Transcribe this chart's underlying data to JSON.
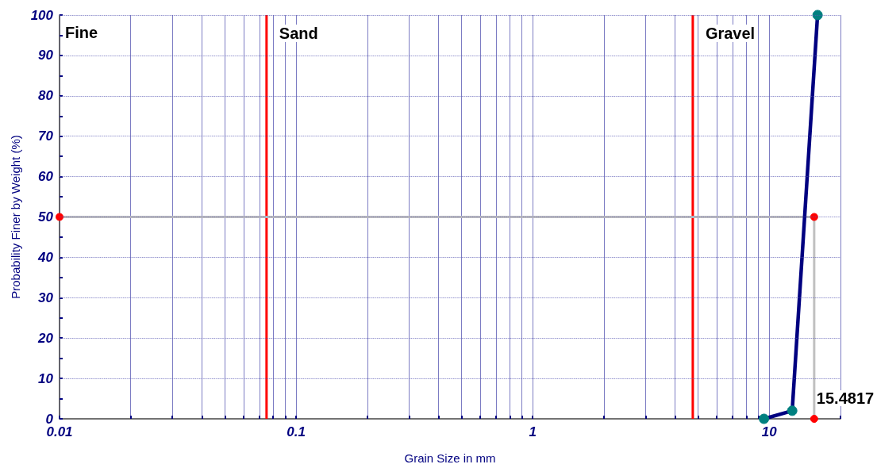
{
  "chart_data": {
    "type": "line",
    "xlabel": "Grain Size in mm",
    "ylabel": "Probability Finer by Weight (%)",
    "log": "x",
    "grid": true,
    "marker": "circle",
    "xlim": [
      0.01,
      20
    ],
    "xticks": [
      0.01,
      {
        "value": 0.02,
        "label": null
      },
      {
        "value": 0.03,
        "label": null
      },
      {
        "value": 0.04,
        "label": null
      },
      {
        "value": 0.05,
        "label": null
      },
      {
        "value": 0.06,
        "label": null
      },
      {
        "value": 0.07,
        "label": null
      },
      {
        "value": 0.08,
        "label": null
      },
      {
        "value": 0.09,
        "label": null
      },
      0.1,
      {
        "value": 0.2,
        "label": null
      },
      {
        "value": 0.3,
        "label": null
      },
      {
        "value": 0.4,
        "label": null
      },
      {
        "value": 0.5,
        "label": null
      },
      {
        "value": 0.6,
        "label": null
      },
      {
        "value": 0.7,
        "label": null
      },
      {
        "value": 0.8,
        "label": null
      },
      {
        "value": 0.9,
        "label": null
      },
      1,
      {
        "value": 2,
        "label": null
      },
      {
        "value": 3,
        "label": null
      },
      {
        "value": 4,
        "label": null
      },
      {
        "value": 5,
        "label": null
      },
      {
        "value": 6,
        "label": null
      },
      {
        "value": 7,
        "label": null
      },
      {
        "value": 8,
        "label": null
      },
      {
        "value": 9,
        "label": null
      },
      10,
      {
        "value": 20,
        "label": null
      }
    ],
    "ylim": [
      0,
      100
    ],
    "yticks": [
      0,
      {
        "value": 5,
        "label": null
      },
      10,
      {
        "value": 15,
        "label": null
      },
      20,
      {
        "value": 25,
        "label": null
      },
      30,
      {
        "value": 35,
        "label": null
      },
      40,
      {
        "value": 45,
        "label": null
      },
      50,
      {
        "value": 55,
        "label": null
      },
      60,
      {
        "value": 65,
        "label": null
      },
      70,
      {
        "value": 75,
        "label": null
      },
      80,
      {
        "value": 85,
        "label": null
      },
      90,
      {
        "value": 95,
        "label": null
      },
      100
    ],
    "series": [
      {
        "color": "#c0c0c0",
        "colors": [
          "#ff0000",
          "#ff0000",
          "#ff0000"
        ],
        "x": [
          0.01,
          15.4817,
          15.4817
        ],
        "values": [
          50,
          50,
          0
        ]
      },
      {
        "color": "#000080",
        "colors": [
          "#008080",
          "#008080",
          "#008080"
        ],
        "x": [
          9.5,
          12.5,
          16
        ],
        "values": [
          0,
          2,
          100
        ]
      }
    ],
    "ref_lines": [
      {
        "axis": "x",
        "value": 0.075,
        "label": "Sand",
        "color": "#ff0000"
      },
      {
        "axis": "x",
        "value": 4.75,
        "label": "Gravel",
        "color": "#ff0000"
      }
    ],
    "annotations": [
      "Fine",
      {
        "text": "15.4817",
        "x": 15.4817,
        "y": 0
      }
    ]
  }
}
